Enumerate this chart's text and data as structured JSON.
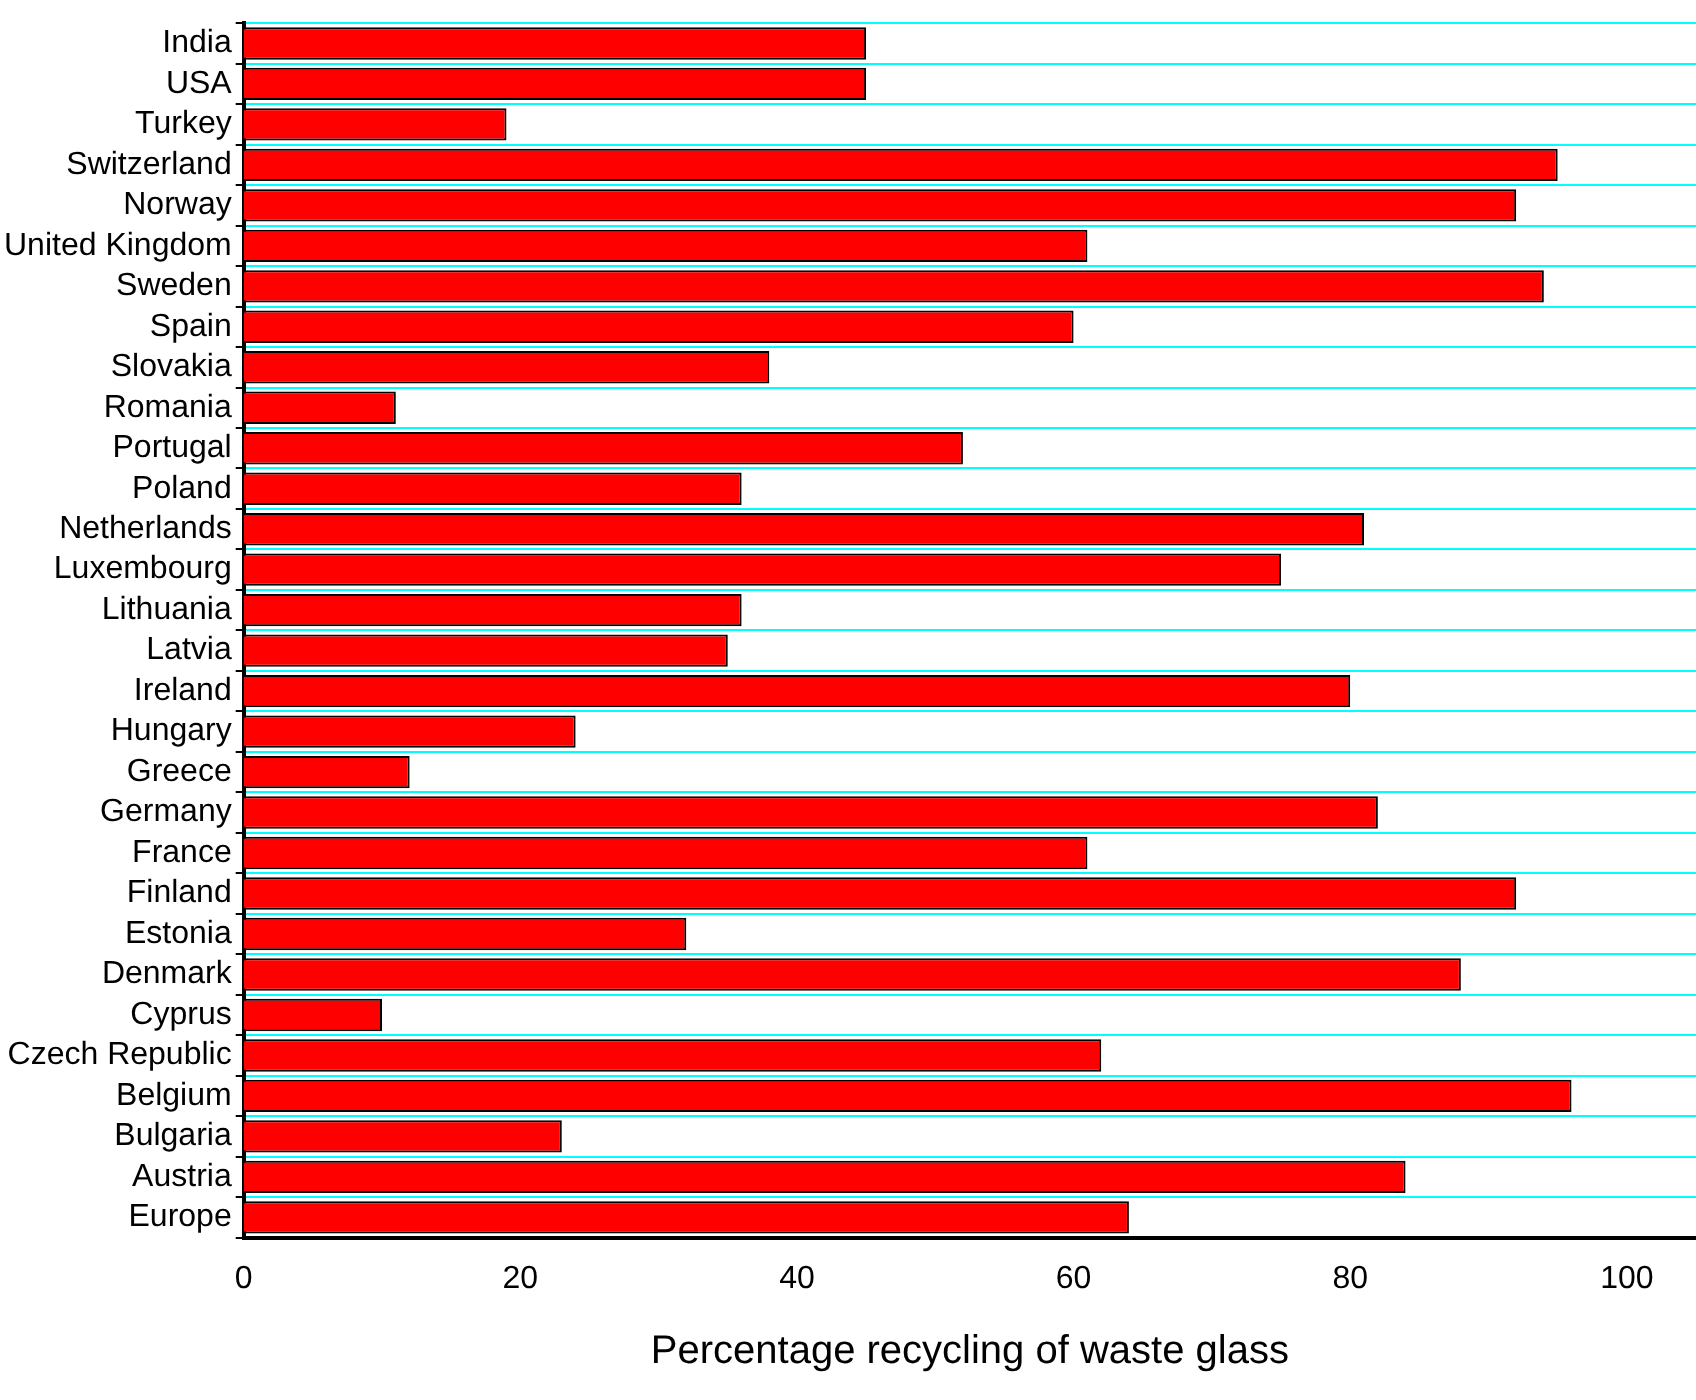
{
  "chart_data": {
    "type": "bar",
    "orientation": "horizontal",
    "xlabel": "Percentage recycling of waste glass",
    "categories": [
      "India",
      "USA",
      "Turkey",
      "Switzerland",
      "Norway",
      "United Kingdom",
      "Sweden",
      "Spain",
      "Slovakia",
      "Romania",
      "Portugal",
      "Poland",
      "Netherlands",
      "Luxembourg",
      "Lithuania",
      "Latvia",
      "Ireland",
      "Hungary",
      "Greece",
      "Germany",
      "France",
      "Finland",
      "Estonia",
      "Denmark",
      "Cyprus",
      "Czech Republic",
      "Belgium",
      "Bulgaria",
      "Austria",
      "Europe"
    ],
    "values": [
      45,
      45,
      19,
      95,
      92,
      61,
      94,
      60,
      38,
      11,
      52,
      36,
      81,
      75,
      36,
      35,
      80,
      24,
      12,
      82,
      61,
      92,
      32,
      88,
      10,
      62,
      96,
      23,
      84,
      64
    ],
    "color": "#ff0000",
    "xlim": [
      0,
      105
    ],
    "xticks": [
      0,
      20,
      40,
      60,
      80,
      100
    ],
    "grid": "y",
    "legend": false
  }
}
